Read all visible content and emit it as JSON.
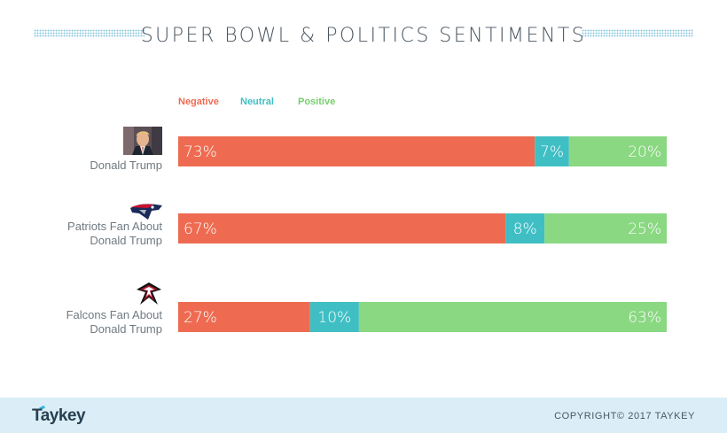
{
  "title": "SUPER BOWL & POLITICS SENTIMENTS",
  "footer": {
    "brand": "Taykey",
    "copyright": "COPYRIGHT© 2017 TAYKEY"
  },
  "colors": {
    "negative": "#ee6b51",
    "neutral": "#3fbfc4",
    "positive": "#8ad882",
    "legend_negative": "#ee6b51",
    "legend_neutral": "#3fbfc4",
    "legend_positive": "#76cf6c"
  },
  "rows": [
    {
      "label": "Donald Trump",
      "icon": "donald-trump-photo-icon"
    },
    {
      "label": "Patriots Fan About\nDonald Trump",
      "icon": "patriots-logo-icon"
    },
    {
      "label": "Falcons Fan About\nDonald Trump",
      "icon": "falcons-logo-icon"
    }
  ],
  "chart_data": {
    "type": "bar",
    "orientation": "horizontal",
    "stacked": true,
    "percent": true,
    "title": "SUPER BOWL & POLITICS SENTIMENTS",
    "categories": [
      "Donald Trump",
      "Patriots Fan About Donald Trump",
      "Falcons Fan About Donald Trump"
    ],
    "series": [
      {
        "name": "Negative",
        "values": [
          73,
          67,
          27
        ],
        "labels": [
          "73%",
          "67%",
          "27%"
        ]
      },
      {
        "name": "Neutral",
        "values": [
          7,
          8,
          10
        ],
        "labels": [
          "7%",
          "8%",
          "10%"
        ]
      },
      {
        "name": "Positive",
        "values": [
          20,
          25,
          63
        ],
        "labels": [
          "20%",
          "25%",
          "63%"
        ]
      }
    ],
    "xlim": [
      0,
      100
    ],
    "grid": false,
    "legend": "top-left"
  }
}
